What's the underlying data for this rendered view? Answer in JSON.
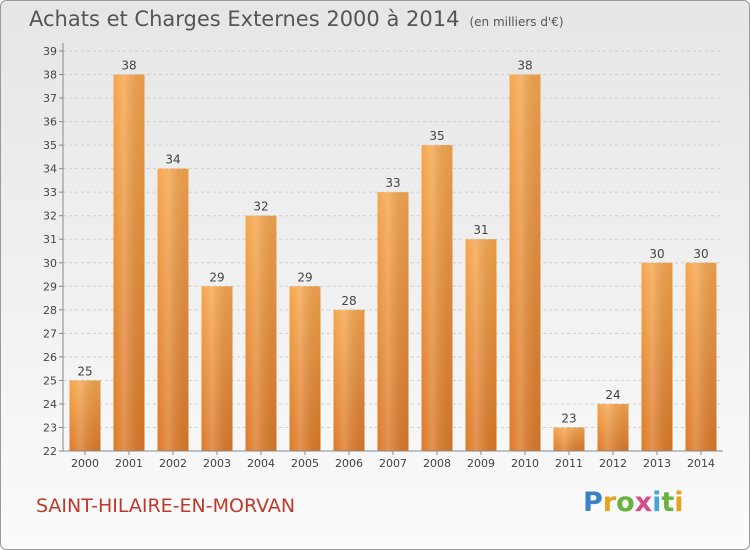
{
  "title": "Achats et Charges Externes 2000 à 2014",
  "subtitle": "(en milliers d'€)",
  "place": "SAINT-HILAIRE-EN-MORVAN",
  "logo": {
    "letters": [
      "P",
      "r",
      "o",
      "x",
      "i",
      "t",
      "i"
    ]
  },
  "colors": {
    "bar_top": "#f5a64e",
    "bar_bottom": "#dc7a2a",
    "axis": "#888888",
    "grid": "#cfcfcf",
    "text": "#444444",
    "place": "#c0392b"
  },
  "chart_data": {
    "type": "bar",
    "categories": [
      "2000",
      "2001",
      "2002",
      "2003",
      "2004",
      "2005",
      "2006",
      "2007",
      "2008",
      "2009",
      "2010",
      "2011",
      "2012",
      "2013",
      "2014"
    ],
    "values": [
      25,
      38,
      34,
      29,
      32,
      29,
      28,
      33,
      35,
      31,
      38,
      23,
      24,
      30,
      30
    ],
    "ylim": [
      22,
      39
    ],
    "yticks": [
      22,
      23,
      24,
      25,
      26,
      27,
      28,
      29,
      30,
      31,
      32,
      33,
      34,
      35,
      36,
      37,
      38,
      39
    ],
    "grid": true,
    "data_labels": true
  }
}
